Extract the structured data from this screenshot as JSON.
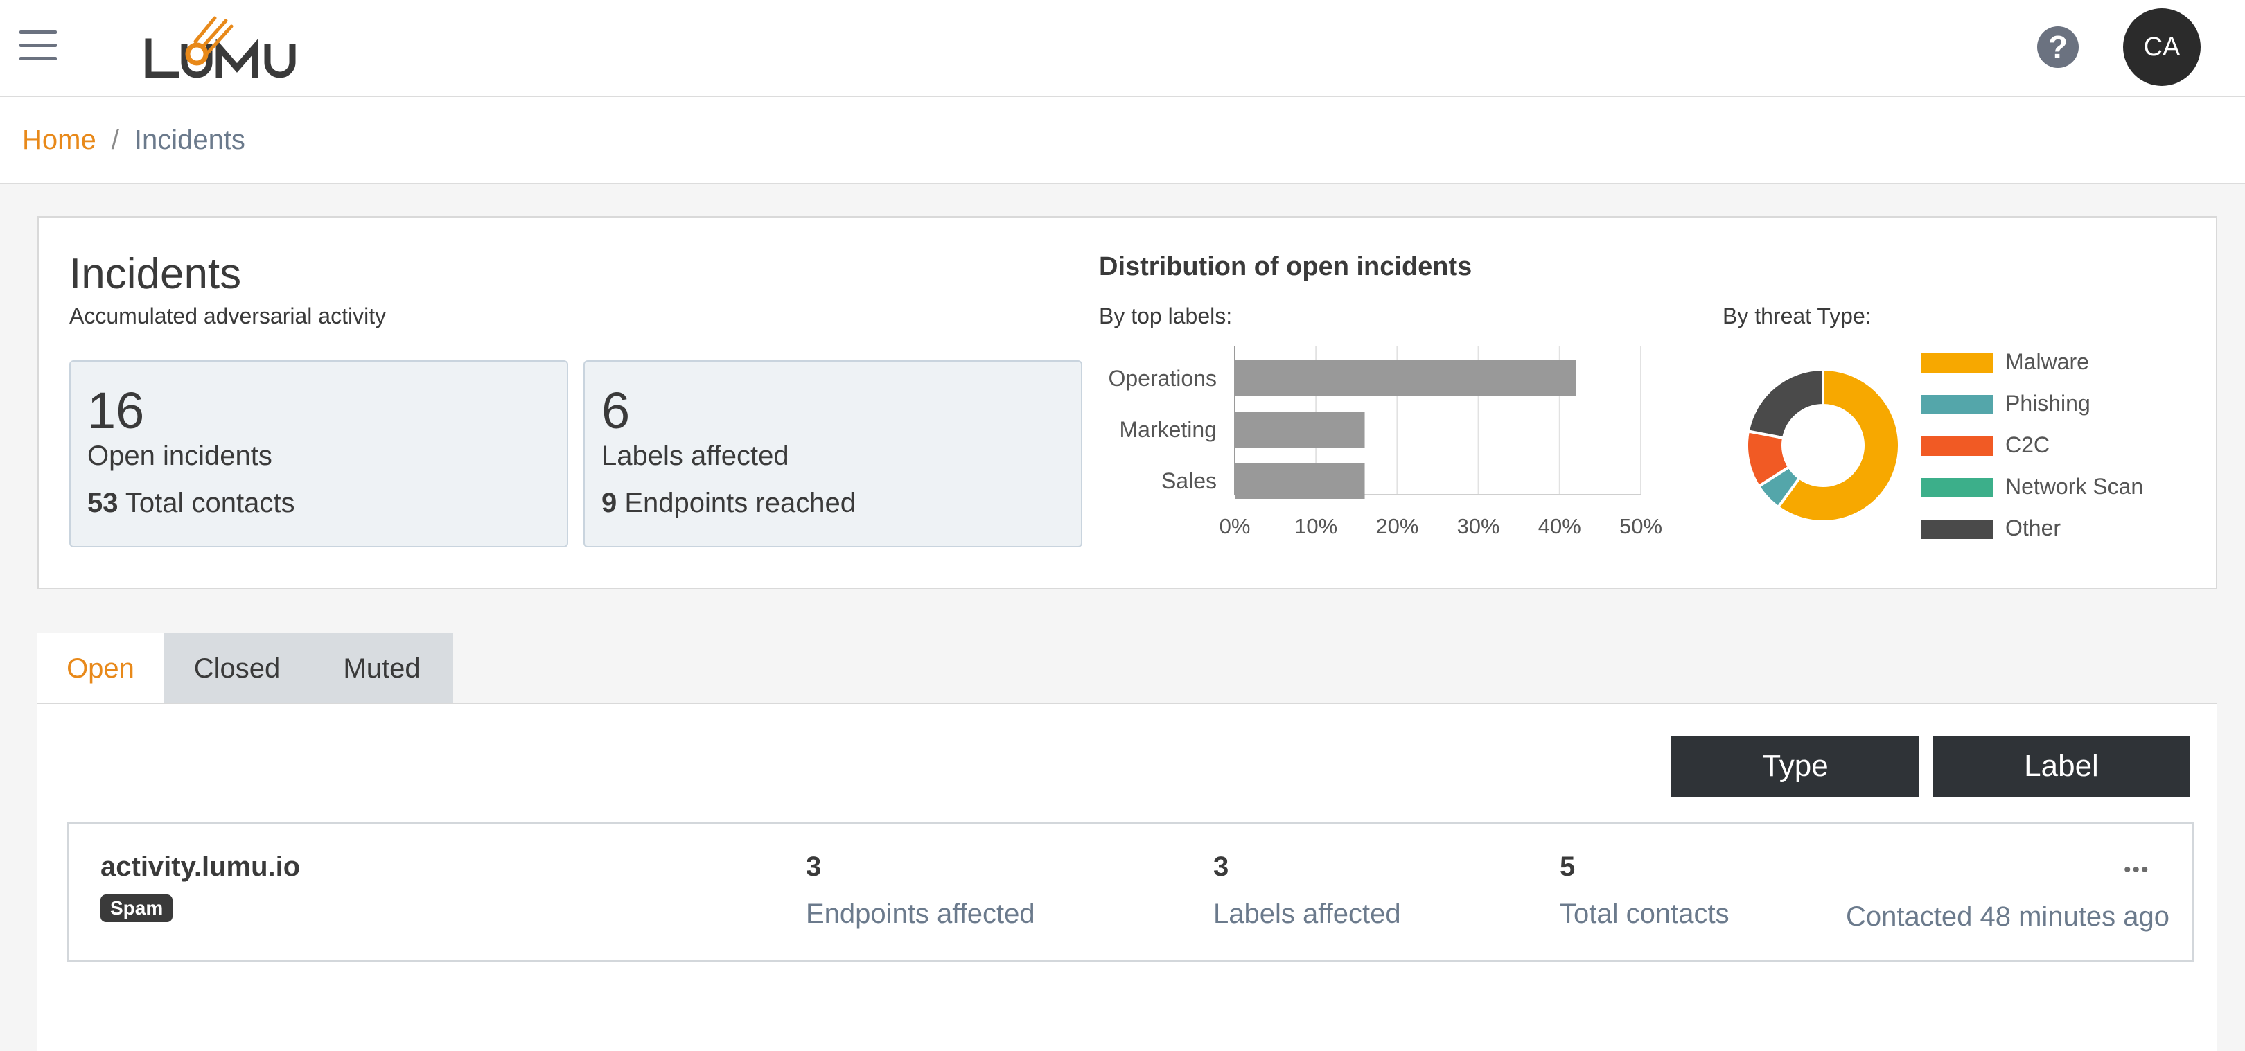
{
  "app": {
    "logo_text": "LUMU",
    "avatar_initials": "CA",
    "help_glyph": "?"
  },
  "breadcrumb": {
    "home": "Home",
    "separator": "/",
    "current": "Incidents"
  },
  "summary": {
    "title": "Incidents",
    "subtitle": "Accumulated adversarial activity",
    "card1": {
      "big": "16",
      "line1": "Open incidents",
      "line2_num": "53",
      "line2_text": "Total contacts"
    },
    "card2": {
      "big": "6",
      "line1": "Labels affected",
      "line2_num": "9",
      "line2_text": "Endpoints reached"
    },
    "distribution_title": "Distribution of open incidents",
    "by_labels_title": "By top labels:",
    "by_type_title": "By threat Type:"
  },
  "chart_data": [
    {
      "type": "bar",
      "orientation": "horizontal",
      "categories": [
        "Operations",
        "Marketing",
        "Sales"
      ],
      "values": [
        42,
        16,
        16
      ],
      "xlim": [
        0,
        50
      ],
      "xticks": [
        "0%",
        "10%",
        "20%",
        "30%",
        "40%",
        "50%"
      ],
      "grid": true,
      "color": "#999999"
    },
    {
      "type": "pie",
      "donut": true,
      "labels": [
        "Malware",
        "Phishing",
        "C2C",
        "Network Scan",
        "Other"
      ],
      "values": [
        60,
        6,
        12,
        0,
        22
      ],
      "colors": [
        "#F7A800",
        "#54A6AA",
        "#F15A24",
        "#3CAF8A",
        "#4A4A4A"
      ],
      "legend": "right"
    }
  ],
  "tabs": [
    {
      "label": "Open",
      "active": true
    },
    {
      "label": "Closed",
      "active": false
    },
    {
      "label": "Muted",
      "active": false
    }
  ],
  "filters": {
    "type_label": "Type",
    "label_label": "Label"
  },
  "incident": {
    "domain": "activity.lumu.io",
    "tag": "Spam",
    "endpoints_num": "3",
    "endpoints_label": "Endpoints affected",
    "labels_num": "3",
    "labels_label": "Labels affected",
    "contacts_num": "5",
    "contacts_label": "Total contacts",
    "more": "•••",
    "last_contact": "Contacted 48 minutes ago"
  }
}
